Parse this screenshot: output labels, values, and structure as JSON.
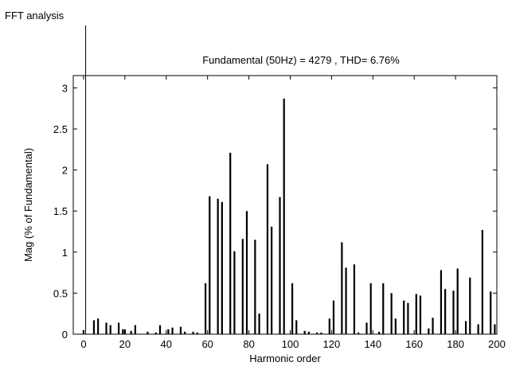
{
  "window": {
    "label": "FFT analysis"
  },
  "chart_data": {
    "type": "bar",
    "title": "Fundamental (50Hz) = 4279 , THD= 6.76%",
    "xlabel": "Harmonic order",
    "ylabel": "Mag (% of Fundamental)",
    "xlim": [
      -5,
      200
    ],
    "ylim": [
      0,
      3.15
    ],
    "xticks": [
      0,
      20,
      40,
      60,
      80,
      100,
      120,
      140,
      160,
      180,
      200
    ],
    "yticks": [
      0,
      0.5,
      1,
      1.5,
      2,
      2.5,
      3
    ],
    "grid": false,
    "color": "#000000",
    "cursor_x": 1,
    "series": [
      {
        "x": [
          0,
          5,
          7,
          11,
          13,
          17,
          19,
          20,
          23,
          25,
          31,
          35,
          37,
          41,
          43,
          47,
          49,
          53,
          55,
          59,
          61,
          65,
          67,
          71,
          73,
          77,
          79,
          83,
          85,
          89,
          91,
          95,
          97,
          101,
          103,
          107,
          109,
          113,
          115,
          119,
          121,
          125,
          127,
          131,
          133,
          137,
          139,
          143,
          145,
          149,
          151,
          155,
          157,
          161,
          163,
          167,
          169,
          173,
          175,
          179,
          181,
          185,
          187,
          191,
          193,
          197,
          199
        ],
        "values": [
          0.05,
          0.17,
          0.19,
          0.14,
          0.11,
          0.14,
          0.06,
          0.06,
          0.04,
          0.11,
          0.03,
          0.02,
          0.11,
          0.06,
          0.08,
          0.09,
          0.03,
          0.03,
          0.02,
          0.62,
          1.68,
          1.65,
          1.61,
          2.21,
          1.01,
          1.16,
          1.5,
          1.15,
          0.25,
          2.07,
          1.31,
          1.67,
          2.87,
          0.62,
          0.17,
          0.04,
          0.03,
          0.02,
          0.02,
          0.19,
          0.41,
          1.12,
          0.81,
          0.85,
          0.02,
          0.14,
          0.62,
          0.03,
          0.62,
          0.5,
          0.19,
          0.41,
          0.38,
          0.49,
          0.47,
          0.07,
          0.2,
          0.78,
          0.55,
          0.53,
          0.8,
          0.16,
          0.69,
          0.12,
          1.27,
          0.52,
          0.12
        ]
      }
    ]
  }
}
